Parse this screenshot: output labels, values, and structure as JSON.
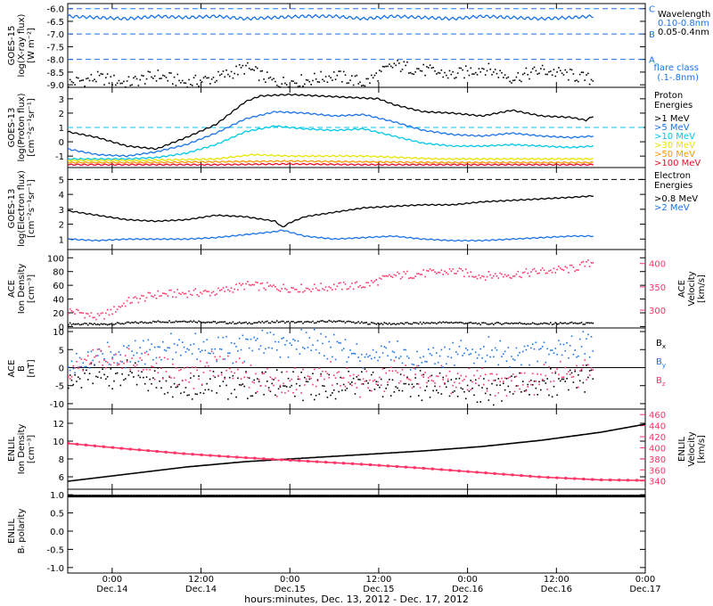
{
  "colors": {
    "black": "#000000",
    "blue": "#1a73e8",
    "cyan": "#00c8e6",
    "yellow": "#e6e600",
    "orange": "#ff9900",
    "red": "#e8102a",
    "pink": "#ff3366",
    "dash": "#1a73e8"
  },
  "x_axis": {
    "title": "hours:minutes, Dec. 13, 2012 - Dec. 17, 2012",
    "ticks": [
      {
        "t": 6,
        "time": "0:00",
        "date": "Dec.14"
      },
      {
        "t": 18,
        "time": "12:00",
        "date": "Dec.14"
      },
      {
        "t": 30,
        "time": "0:00",
        "date": "Dec.15"
      },
      {
        "t": 42,
        "time": "12:00",
        "date": "Dec.15"
      },
      {
        "t": 54,
        "time": "0:00",
        "date": "Dec.16"
      },
      {
        "t": 66,
        "time": "12:00",
        "date": "Dec.16"
      },
      {
        "t": 78,
        "time": "0:00",
        "date": "Dec.17"
      }
    ]
  },
  "chart_data": [
    {
      "type": "line",
      "ylabel": "GOES-15 log(X-ray flux) [W m-2]",
      "ylabel_lines": [
        "GOES-15",
        "log(X-ray flux)",
        "[W m⁻²]"
      ],
      "ylim": [
        -9.1,
        -5.8
      ],
      "yticks": [
        "-6.0",
        "-6.5",
        "-7.0",
        "-7.5",
        "-8.0",
        "-8.5",
        "-9.0"
      ],
      "ytick_values": [
        -6.0,
        -6.5,
        -7.0,
        -7.5,
        -8.0,
        -8.5,
        -9.0
      ],
      "flare_class_lines": [
        {
          "y": -6,
          "label": "C"
        },
        {
          "y": -7,
          "label": "B"
        },
        {
          "y": -8,
          "label": "A"
        }
      ],
      "legend": [
        "Wavelength",
        "0.10-0.8nm",
        "0.05-0.4nm",
        "flare class",
        "(.1-.8nm)"
      ],
      "series": [
        {
          "name": "0.10-0.8nm",
          "color": "blue",
          "x": [
            0,
            4,
            8,
            12,
            16,
            20,
            24,
            28,
            32,
            36,
            40,
            44,
            48,
            52,
            56,
            60,
            64,
            68,
            71
          ],
          "values": [
            -6.3,
            -6.35,
            -6.4,
            -6.3,
            -6.35,
            -6.3,
            -6.4,
            -6.35,
            -6.3,
            -6.3,
            -6.4,
            -6.3,
            -6.35,
            -6.4,
            -6.3,
            -6.35,
            -6.4,
            -6.35,
            -6.3
          ]
        },
        {
          "name": "0.05-0.4nm",
          "color": "black",
          "x": [
            0,
            4,
            8,
            12,
            16,
            20,
            24,
            28,
            32,
            36,
            40,
            44,
            48,
            52,
            56,
            60,
            64,
            68,
            71
          ],
          "values": [
            -8.9,
            -8.7,
            -8.9,
            -8.6,
            -8.9,
            -8.7,
            -8.3,
            -8.9,
            -8.8,
            -8.6,
            -8.9,
            -8.2,
            -8.4,
            -8.6,
            -8.3,
            -8.7,
            -8.4,
            -8.6,
            -8.8
          ]
        }
      ]
    },
    {
      "type": "line",
      "ylabel": "GOES-13 log(Proton flux) [cm-2 s-1 sr-1]",
      "ylabel_lines": [
        "GOES-13",
        "log(Proton flux)",
        "[cm⁻²s⁻¹sr⁻¹]"
      ],
      "ylim": [
        -1.8,
        3.8
      ],
      "yticks": [
        "3",
        "2",
        "1",
        "0",
        "-1"
      ],
      "ytick_values": [
        3,
        2,
        1,
        0,
        -1
      ],
      "threshold_line": 1,
      "legend": [
        "Proton",
        "Energies",
        ">1 MeV",
        ">5 MeV",
        ">10 MeV",
        ">30 MeV",
        ">50 MeV",
        ">100 MeV"
      ],
      "series": [
        {
          "name": ">1 MeV",
          "color": "black",
          "x": [
            0,
            4,
            8,
            12,
            16,
            20,
            22,
            24,
            26,
            30,
            34,
            38,
            42,
            44,
            48,
            52,
            56,
            60,
            64,
            68,
            70,
            71
          ],
          "values": [
            0.7,
            0.3,
            -0.3,
            -0.5,
            0.3,
            1.2,
            2.0,
            2.8,
            3.2,
            3.3,
            3.2,
            3.1,
            3.0,
            2.6,
            2.1,
            2.0,
            1.8,
            2.2,
            1.8,
            1.7,
            1.5,
            1.8
          ]
        },
        {
          "name": ">5 MeV",
          "color": "blue",
          "x": [
            0,
            4,
            8,
            12,
            16,
            20,
            24,
            28,
            32,
            36,
            40,
            44,
            48,
            52,
            56,
            60,
            64,
            68,
            71
          ],
          "values": [
            -0.5,
            -0.9,
            -1.0,
            -0.7,
            -0.2,
            0.6,
            1.6,
            2.1,
            2.0,
            1.8,
            1.9,
            1.4,
            0.8,
            0.5,
            0.4,
            0.6,
            0.4,
            0.3,
            0.4
          ]
        },
        {
          "name": ">10 MeV",
          "color": "cyan",
          "x": [
            0,
            4,
            8,
            12,
            16,
            20,
            24,
            28,
            32,
            36,
            40,
            44,
            48,
            52,
            56,
            60,
            64,
            68,
            71
          ],
          "values": [
            -1.2,
            -1.2,
            -1.2,
            -1.1,
            -0.8,
            -0.2,
            0.7,
            1.1,
            0.9,
            0.8,
            0.9,
            0.4,
            -0.1,
            -0.3,
            -0.3,
            -0.2,
            -0.3,
            -0.4,
            -0.3
          ]
        },
        {
          "name": ">30 MeV",
          "color": "yellow",
          "x": [
            0,
            10,
            20,
            25,
            30,
            40,
            50,
            60,
            71
          ],
          "values": [
            -1.3,
            -1.3,
            -1.2,
            -0.9,
            -1.0,
            -1.0,
            -1.2,
            -1.2,
            -1.2
          ]
        },
        {
          "name": ">50 MeV",
          "color": "orange",
          "x": [
            0,
            10,
            20,
            30,
            40,
            50,
            60,
            71
          ],
          "values": [
            -1.45,
            -1.45,
            -1.4,
            -1.35,
            -1.4,
            -1.45,
            -1.45,
            -1.45
          ]
        },
        {
          "name": ">100 MeV",
          "color": "red",
          "x": [
            0,
            10,
            20,
            30,
            40,
            50,
            60,
            71
          ],
          "values": [
            -1.6,
            -1.6,
            -1.6,
            -1.55,
            -1.6,
            -1.6,
            -1.6,
            -1.6
          ]
        }
      ]
    },
    {
      "type": "line",
      "ylabel": "GOES-13 log(Electron flux) [cm-2 s-1 sr-1]",
      "ylabel_lines": [
        "GOES-13",
        "log(Electron flux)",
        "[cm⁻²s⁻¹sr⁻¹]"
      ],
      "ylim": [
        0.3,
        5.8
      ],
      "yticks": [
        "5",
        "4",
        "3",
        "2",
        "1"
      ],
      "ytick_values": [
        5,
        4,
        3,
        2,
        1
      ],
      "threshold_line": 5,
      "legend": [
        "Electron",
        "Energies",
        ">0.8 MeV",
        ">2 MeV"
      ],
      "series": [
        {
          "name": ">0.8 MeV",
          "color": "black",
          "x": [
            0,
            4,
            8,
            12,
            16,
            20,
            24,
            28,
            29,
            30,
            32,
            36,
            40,
            44,
            48,
            52,
            56,
            60,
            64,
            68,
            71
          ],
          "values": [
            2.9,
            2.6,
            2.3,
            2.2,
            2.3,
            2.6,
            2.5,
            2.2,
            1.8,
            2.1,
            2.5,
            2.8,
            3.1,
            3.2,
            3.3,
            3.3,
            3.5,
            3.6,
            3.7,
            3.8,
            3.9
          ]
        },
        {
          "name": ">2 MeV",
          "color": "blue",
          "x": [
            0,
            4,
            8,
            12,
            16,
            20,
            24,
            28,
            29,
            32,
            36,
            40,
            44,
            48,
            52,
            56,
            60,
            64,
            68,
            71
          ],
          "values": [
            1.0,
            0.9,
            1.0,
            1.0,
            1.0,
            1.1,
            1.3,
            1.5,
            1.6,
            1.2,
            1.0,
            1.1,
            1.2,
            1.0,
            0.9,
            0.9,
            1.0,
            1.1,
            1.2,
            1.2
          ]
        }
      ]
    },
    {
      "type": "scatter",
      "ylabel": "ACE Ion Density [cm-3]",
      "ylabel_lines": [
        "ACE",
        "Ion Density",
        "[cm⁻³]"
      ],
      "ylim": [
        -2,
        112
      ],
      "yticks": [
        "100",
        "80",
        "60",
        "40",
        "20",
        "0"
      ],
      "ytick_values": [
        100,
        80,
        60,
        40,
        20,
        0
      ],
      "y2label": "ACE Velocity [km/s]",
      "y2label_lines": [
        "ACE",
        "Velocity",
        "[km/s]"
      ],
      "y2lim": [
        262,
        430
      ],
      "y2ticks": [
        "400",
        "350",
        "300"
      ],
      "y2tick_values": [
        400,
        350,
        300
      ],
      "series": [
        {
          "name": "Ion Density",
          "color": "black",
          "axis": "left",
          "x": [
            0,
            4,
            8,
            12,
            16,
            20,
            24,
            28,
            32,
            36,
            40,
            44,
            48,
            52,
            56,
            60,
            64,
            68,
            71
          ],
          "values": [
            5,
            4,
            6,
            8,
            9,
            7,
            6,
            8,
            7,
            9,
            6,
            5,
            6,
            7,
            5,
            6,
            5,
            6,
            5
          ]
        },
        {
          "name": "Velocity",
          "color": "pink",
          "axis": "right",
          "x": [
            0,
            2,
            4,
            6,
            8,
            12,
            16,
            20,
            24,
            28,
            32,
            36,
            40,
            44,
            48,
            52,
            56,
            60,
            64,
            68,
            71
          ],
          "values": [
            300,
            295,
            285,
            300,
            320,
            335,
            338,
            340,
            355,
            350,
            348,
            352,
            355,
            375,
            380,
            385,
            375,
            378,
            385,
            390,
            405
          ]
        }
      ]
    },
    {
      "type": "scatter",
      "ylabel": "ACE B [nT]",
      "ylabel_lines": [
        "ACE",
        "B",
        "[nT]"
      ],
      "ylim": [
        -11.5,
        11
      ],
      "yticks": [
        "10",
        "5",
        "0",
        "-5",
        "-10"
      ],
      "ytick_values": [
        10,
        5,
        0,
        -5,
        -10
      ],
      "legend": [
        "B",
        "x",
        "B",
        "y",
        "B",
        "z"
      ],
      "series": [
        {
          "name": "Bx",
          "color": "black",
          "x": [
            0,
            4,
            8,
            12,
            16,
            20,
            24,
            28,
            32,
            36,
            40,
            44,
            48,
            52,
            56,
            60,
            64,
            68,
            71
          ],
          "values": [
            -3,
            -2,
            -2,
            -3,
            -5,
            -4,
            -5,
            -4,
            -5,
            -6,
            -3,
            -5,
            -5,
            -5,
            -7,
            -4,
            -5,
            -3,
            -3
          ]
        },
        {
          "name": "By",
          "color": "blue",
          "x": [
            0,
            4,
            8,
            12,
            16,
            20,
            24,
            28,
            32,
            36,
            40,
            44,
            48,
            52,
            56,
            60,
            64,
            68,
            71
          ],
          "values": [
            0,
            3,
            4,
            5,
            6,
            5,
            6,
            7,
            8,
            6,
            3,
            4,
            2,
            4,
            5,
            4,
            5,
            5,
            7
          ]
        },
        {
          "name": "Bz",
          "color": "pink",
          "x": [
            0,
            4,
            8,
            12,
            16,
            20,
            24,
            28,
            32,
            36,
            40,
            44,
            48,
            52,
            56,
            60,
            64,
            68,
            71
          ],
          "values": [
            -1,
            3,
            2,
            0,
            -3,
            1,
            -2,
            -4,
            -3,
            -2,
            -5,
            -1,
            -3,
            -4,
            -2,
            -5,
            -3,
            -2,
            0
          ]
        }
      ]
    },
    {
      "type": "line",
      "ylabel": "ENLIL Ion Density [cm-3]",
      "ylabel_lines": [
        "ENLIL",
        "Ion Density",
        "[cm⁻³]"
      ],
      "ylim": [
        4.6,
        13.6
      ],
      "yticks": [
        "12",
        "10",
        "8",
        "6"
      ],
      "ytick_values": [
        12,
        10,
        8,
        6
      ],
      "y2label": "ENLIL Velocity [km/s]",
      "y2label_lines": [
        "ENLIL",
        "Velocity",
        "[km/s]"
      ],
      "y2lim": [
        325,
        470
      ],
      "y2ticks": [
        "460",
        "440",
        "420",
        "400",
        "380",
        "360",
        "340"
      ],
      "y2tick_values": [
        460,
        440,
        420,
        400,
        380,
        360,
        340
      ],
      "series": [
        {
          "name": "Ion Density",
          "color": "black",
          "axis": "left",
          "x": [
            0,
            8,
            16,
            24,
            32,
            40,
            48,
            56,
            64,
            72,
            78
          ],
          "values": [
            5.5,
            6.3,
            7.1,
            7.7,
            8.1,
            8.5,
            8.9,
            9.4,
            10.1,
            11.0,
            11.9
          ]
        },
        {
          "name": "Velocity",
          "color": "pink",
          "axis": "right",
          "x": [
            0,
            8,
            16,
            24,
            32,
            40,
            48,
            56,
            64,
            72,
            78
          ],
          "values": [
            408,
            398,
            389,
            382,
            376,
            370,
            363,
            355,
            347,
            342,
            341
          ]
        }
      ]
    },
    {
      "type": "line",
      "ylabel": "ENLIL Br polarity",
      "ylabel_lines": [
        "ENLIL",
        "Bᵣ polarity"
      ],
      "ylim": [
        -1.15,
        1.15
      ],
      "yticks": [
        "1.0",
        "0.5",
        "0.0",
        "-0.5",
        "-1.0"
      ],
      "ytick_values": [
        1.0,
        0.5,
        0.0,
        -0.5,
        -1.0
      ],
      "series": [
        {
          "name": "Br polarity",
          "color": "black",
          "x": [
            0,
            78
          ],
          "values": [
            1.0,
            1.0
          ]
        }
      ]
    }
  ]
}
